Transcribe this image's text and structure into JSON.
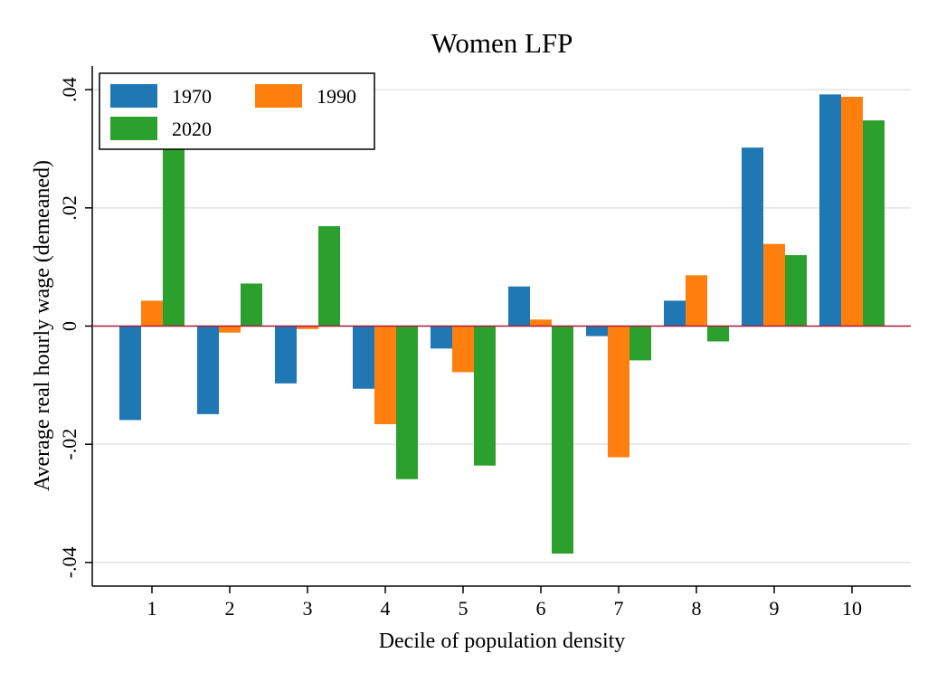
{
  "chart_data": {
    "type": "bar",
    "title": "Women LFP",
    "x_label": "Decile of population density",
    "y_label": "Average real hourly wage (demeaned)",
    "categories": [
      "1",
      "2",
      "3",
      "4",
      "5",
      "6",
      "7",
      "8",
      "9",
      "10"
    ],
    "series": [
      {
        "name": "1970",
        "color": "#1f77b4",
        "values": [
          -0.0159,
          -0.0149,
          -0.0097,
          -0.0106,
          -0.0038,
          0.0067,
          -0.0017,
          0.0043,
          0.0302,
          0.0392
        ]
      },
      {
        "name": "1990",
        "color": "#ff7f0e",
        "values": [
          0.0043,
          -0.0011,
          -0.0005,
          -0.0166,
          -0.0078,
          0.0011,
          -0.0222,
          0.0086,
          0.0139,
          0.0388
        ]
      },
      {
        "name": "2020",
        "color": "#2ca02c",
        "values": [
          0.031,
          0.0072,
          0.0169,
          -0.0259,
          -0.0236,
          -0.0385,
          -0.0058,
          -0.0026,
          0.012,
          0.0348
        ]
      }
    ],
    "ylim": [
      -0.044,
      0.044
    ],
    "yticks": [
      {
        "value": -0.04,
        "label": "-.04"
      },
      {
        "value": -0.02,
        "label": "-.02"
      },
      0,
      {
        "value": 0.02,
        "label": ".02"
      },
      {
        "value": 0.04,
        "label": ".04"
      }
    ],
    "grid": true,
    "legend": "top-left"
  }
}
